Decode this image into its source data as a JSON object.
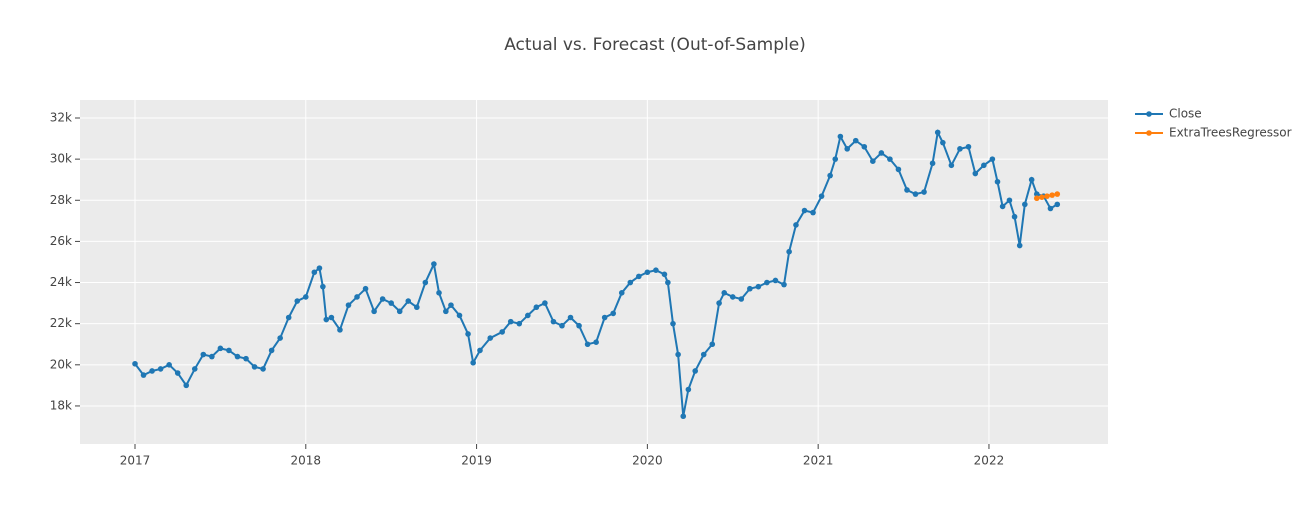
{
  "chart_data": {
    "type": "line",
    "title": "Actual vs. Forecast (Out-of-Sample)",
    "xlim": [
      2016.678,
      2022.697
    ],
    "xticks": [
      2017,
      2018,
      2019,
      2020,
      2021,
      2022
    ],
    "ylim": [
      16150,
      32875
    ],
    "yticks": [
      {
        "value": 18000,
        "label": "18k"
      },
      {
        "value": 20000,
        "label": "20k"
      },
      {
        "value": 22000,
        "label": "22k"
      },
      {
        "value": 24000,
        "label": "24k"
      },
      {
        "value": 26000,
        "label": "26k"
      },
      {
        "value": 28000,
        "label": "28k"
      },
      {
        "value": 30000,
        "label": "30k"
      },
      {
        "value": 32000,
        "label": "32k"
      }
    ],
    "grid": true,
    "legend": "outside-right",
    "series": [
      {
        "name": "Close",
        "color": "#1f77b4",
        "x": [
          2017.0,
          2017.05,
          2017.1,
          2017.15,
          2017.2,
          2017.25,
          2017.3,
          2017.35,
          2017.4,
          2017.45,
          2017.5,
          2017.55,
          2017.6,
          2017.65,
          2017.7,
          2017.75,
          2017.8,
          2017.85,
          2017.9,
          2017.95,
          2018.0,
          2018.05,
          2018.08,
          2018.1,
          2018.12,
          2018.15,
          2018.2,
          2018.25,
          2018.3,
          2018.35,
          2018.4,
          2018.45,
          2018.5,
          2018.55,
          2018.6,
          2018.65,
          2018.7,
          2018.75,
          2018.78,
          2018.82,
          2018.85,
          2018.9,
          2018.95,
          2018.98,
          2019.02,
          2019.08,
          2019.15,
          2019.2,
          2019.25,
          2019.3,
          2019.35,
          2019.4,
          2019.45,
          2019.5,
          2019.55,
          2019.6,
          2019.65,
          2019.7,
          2019.75,
          2019.8,
          2019.85,
          2019.9,
          2019.95,
          2020.0,
          2020.05,
          2020.1,
          2020.12,
          2020.15,
          2020.18,
          2020.21,
          2020.24,
          2020.28,
          2020.33,
          2020.38,
          2020.42,
          2020.45,
          2020.5,
          2020.55,
          2020.6,
          2020.65,
          2020.7,
          2020.75,
          2020.8,
          2020.83,
          2020.87,
          2020.92,
          2020.97,
          2021.02,
          2021.07,
          2021.1,
          2021.13,
          2021.17,
          2021.22,
          2021.27,
          2021.32,
          2021.37,
          2021.42,
          2021.47,
          2021.52,
          2021.57,
          2021.62,
          2021.67,
          2021.7,
          2021.73,
          2021.78,
          2021.83,
          2021.88,
          2021.92,
          2021.97,
          2022.02,
          2022.05,
          2022.08,
          2022.12,
          2022.15,
          2022.18,
          2022.21,
          2022.25,
          2022.28,
          2022.32,
          2022.36,
          2022.4
        ],
        "values": [
          20050,
          19500,
          19700,
          19800,
          20000,
          19600,
          19000,
          19800,
          20500,
          20400,
          20800,
          20700,
          20400,
          20300,
          19900,
          19800,
          20700,
          21300,
          22300,
          23100,
          23300,
          24500,
          24700,
          23800,
          22200,
          22300,
          21700,
          22900,
          23300,
          23700,
          22600,
          23200,
          23000,
          22600,
          23100,
          22800,
          24000,
          24900,
          23500,
          22600,
          22900,
          22400,
          21500,
          20100,
          20700,
          21300,
          21600,
          22100,
          22000,
          22400,
          22800,
          23000,
          22100,
          21900,
          22300,
          21900,
          21000,
          21100,
          22300,
          22500,
          23500,
          24000,
          24300,
          24500,
          24600,
          24400,
          24000,
          22000,
          20500,
          17500,
          18800,
          19700,
          20500,
          21000,
          23000,
          23500,
          23300,
          23200,
          23700,
          23800,
          24000,
          24100,
          23900,
          25500,
          26800,
          27500,
          27400,
          28200,
          29200,
          30000,
          31100,
          30500,
          30900,
          30600,
          29900,
          30300,
          30000,
          29500,
          28500,
          28300,
          28400,
          29800,
          31300,
          30800,
          29700,
          30500,
          30600,
          29300,
          29700,
          30000,
          28900,
          27700,
          28000,
          27200,
          25800,
          27800,
          29000,
          28300,
          28200,
          27600,
          27800
        ]
      },
      {
        "name": "ExtraTreesRegressor",
        "color": "#ff7f0e",
        "x": [
          2022.28,
          2022.31,
          2022.34,
          2022.37,
          2022.4
        ],
        "values": [
          28100,
          28150,
          28200,
          28250,
          28300
        ]
      }
    ]
  }
}
